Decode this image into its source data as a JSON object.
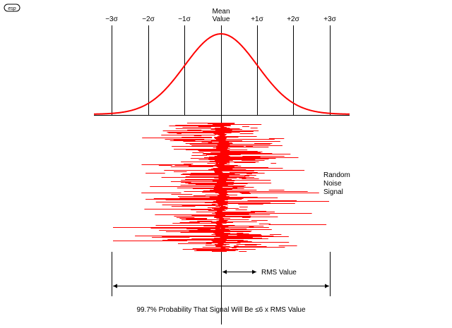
{
  "logo": {
    "text": "esp"
  },
  "header": {
    "mean_line1": "Mean",
    "mean_line2": "Value"
  },
  "sigma_labels": [
    "−3σ",
    "−2σ",
    "−1σ",
    "+1σ",
    "+2σ",
    "+3σ"
  ],
  "noise_label": [
    "Random",
    "Noise",
    "Signal"
  ],
  "rms_label": "RMS Value",
  "caption": "99.7% Probability That Signal Will Be ≤6 x RMS Value",
  "colors": {
    "curve": "#ff0000",
    "noise": "#ff0000",
    "lines": "#000000"
  },
  "icons": {
    "arrow": "arrowhead"
  }
}
